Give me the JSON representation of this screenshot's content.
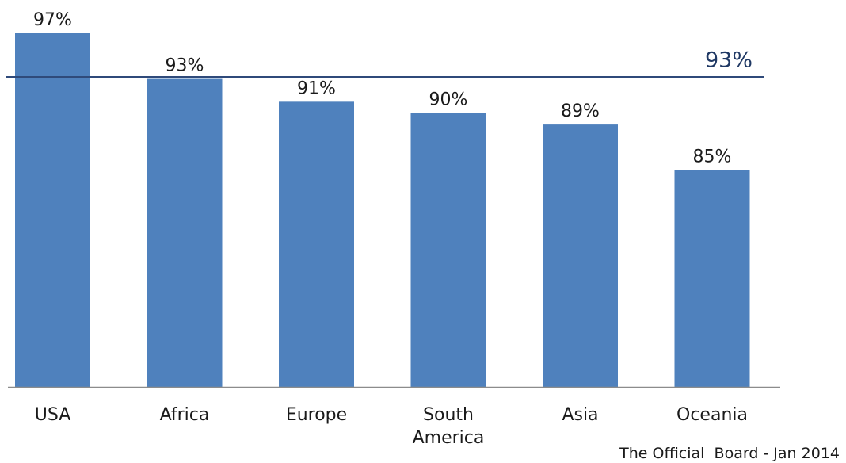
{
  "chart_data": {
    "type": "bar",
    "categories": [
      "USA",
      "Africa",
      "Europe",
      "South America",
      "Asia",
      "Oceania"
    ],
    "category_lines": [
      [
        "USA"
      ],
      [
        "Africa"
      ],
      [
        "Europe"
      ],
      [
        "South",
        "America"
      ],
      [
        "Asia"
      ],
      [
        "Oceania"
      ]
    ],
    "values": [
      97,
      93,
      91,
      90,
      89,
      85
    ],
    "value_labels": [
      "97%",
      "93%",
      "91%",
      "90%",
      "89%",
      "85%"
    ],
    "reference_line": {
      "value": 93,
      "label": "93%",
      "color": "#2f4a7a"
    },
    "bar_color": "#4f81bd",
    "ylim": [
      66,
      97
    ],
    "grid": false,
    "legend": "none"
  },
  "source": "The Official  Board - Jan 2014"
}
